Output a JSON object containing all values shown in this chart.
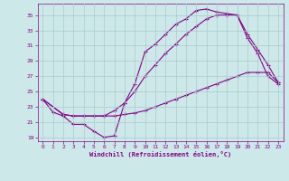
{
  "xlabel": "Windchill (Refroidissement éolien,°C)",
  "bg_color": "#cce8e8",
  "line_color": "#880088",
  "grid_color": "#aacccc",
  "ylim": [
    18.5,
    36.5
  ],
  "xlim": [
    -0.5,
    23.5
  ],
  "yticks": [
    19,
    21,
    23,
    25,
    27,
    29,
    31,
    33,
    35
  ],
  "xticks": [
    0,
    1,
    2,
    3,
    4,
    5,
    6,
    7,
    8,
    9,
    10,
    11,
    12,
    13,
    14,
    15,
    16,
    17,
    18,
    19,
    20,
    21,
    22,
    23
  ],
  "line1_x": [
    0,
    1,
    2,
    3,
    4,
    5,
    6,
    7,
    8,
    9,
    10,
    11,
    12,
    13,
    14,
    15,
    16,
    17,
    18,
    19,
    20,
    21,
    22,
    23
  ],
  "line1_y": [
    24.0,
    22.3,
    21.8,
    20.7,
    20.7,
    19.8,
    19.0,
    19.2,
    23.5,
    26.0,
    30.2,
    31.2,
    32.5,
    33.8,
    34.5,
    35.6,
    35.8,
    35.4,
    35.2,
    35.0,
    32.0,
    30.0,
    27.0,
    26.0
  ],
  "line2_x": [
    0,
    2,
    3,
    4,
    5,
    6,
    7,
    8,
    9,
    10,
    11,
    12,
    13,
    14,
    15,
    16,
    17,
    18,
    19,
    20,
    21,
    22,
    23
  ],
  "line2_y": [
    24.0,
    22.0,
    21.8,
    21.8,
    21.8,
    21.8,
    22.5,
    23.5,
    25.0,
    27.0,
    28.5,
    30.0,
    31.2,
    32.5,
    33.5,
    34.5,
    35.0,
    35.0,
    35.0,
    32.5,
    30.5,
    28.5,
    26.2
  ],
  "line3_x": [
    0,
    2,
    3,
    4,
    5,
    6,
    7,
    8,
    9,
    10,
    11,
    12,
    13,
    14,
    15,
    16,
    17,
    18,
    19,
    20,
    21,
    22,
    23
  ],
  "line3_y": [
    24.0,
    22.0,
    21.8,
    21.8,
    21.8,
    21.8,
    21.8,
    22.0,
    22.2,
    22.5,
    23.0,
    23.5,
    24.0,
    24.5,
    25.0,
    25.5,
    26.0,
    26.5,
    27.0,
    27.5,
    27.5,
    27.5,
    26.2
  ]
}
